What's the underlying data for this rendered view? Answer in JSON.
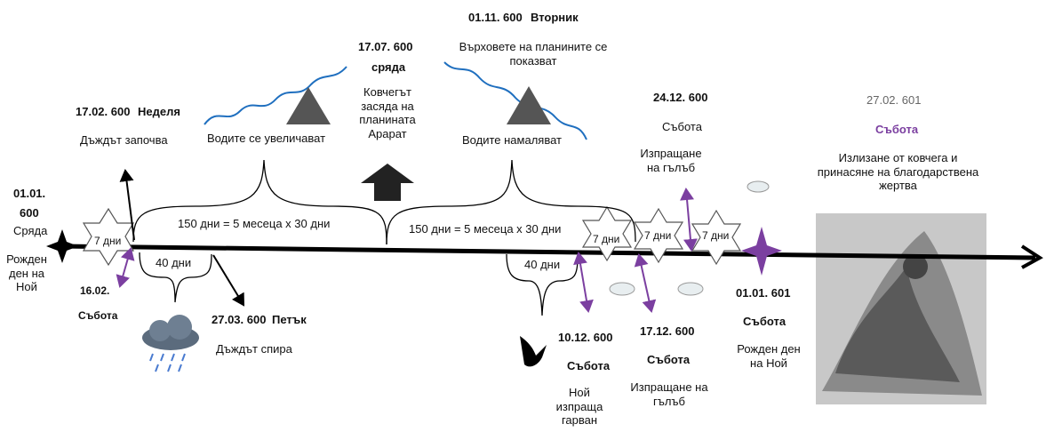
{
  "events": [
    {
      "date": "01.01.",
      "year": "600",
      "day": "Сряда",
      "text": "Рожден ден на Ной"
    },
    {
      "date": "16.02.",
      "day": "Събота"
    },
    {
      "date": "17.02. 600",
      "day": "Неделя",
      "text": "Дъждът започва"
    },
    {
      "date": "27.03. 600",
      "day": "Петък",
      "text": "Дъждът спира"
    },
    {
      "date": "17.07. 600",
      "day": "сряда",
      "text": "Ковчегът засяда на планината Арарат"
    },
    {
      "date": "01.11. 600",
      "day": "Вторник",
      "text": "Върховете на планините се показват"
    },
    {
      "date": "10.12. 600",
      "day": "Събота",
      "text": "Ной изпраща гарван"
    },
    {
      "date": "17.12. 600",
      "day": "Събота",
      "text": "Изпращане на гълъб"
    },
    {
      "date": "24.12. 600",
      "day": "Събота",
      "text": "Изпращане на гълъб"
    },
    {
      "date": "01.01. 601",
      "day": "Събота",
      "text": "Рожден ден на Ной"
    },
    {
      "date": "27.02. 601",
      "day": "Събота",
      "text": "Излизане от ковчега и принасяне на благодарствена жертва"
    }
  ],
  "periods": {
    "weeks": [
      "7 дни",
      "7 дни",
      "7 дни",
      "7 дни"
    ],
    "forty": [
      "40 дни",
      "40 дни"
    ],
    "flood": [
      "150 дни = 5 месеца х 30 дни",
      "150 дни = 5 месеца х 30 дни"
    ],
    "waters": [
      "Водите се увеличават",
      "Водите намаляват"
    ]
  }
}
